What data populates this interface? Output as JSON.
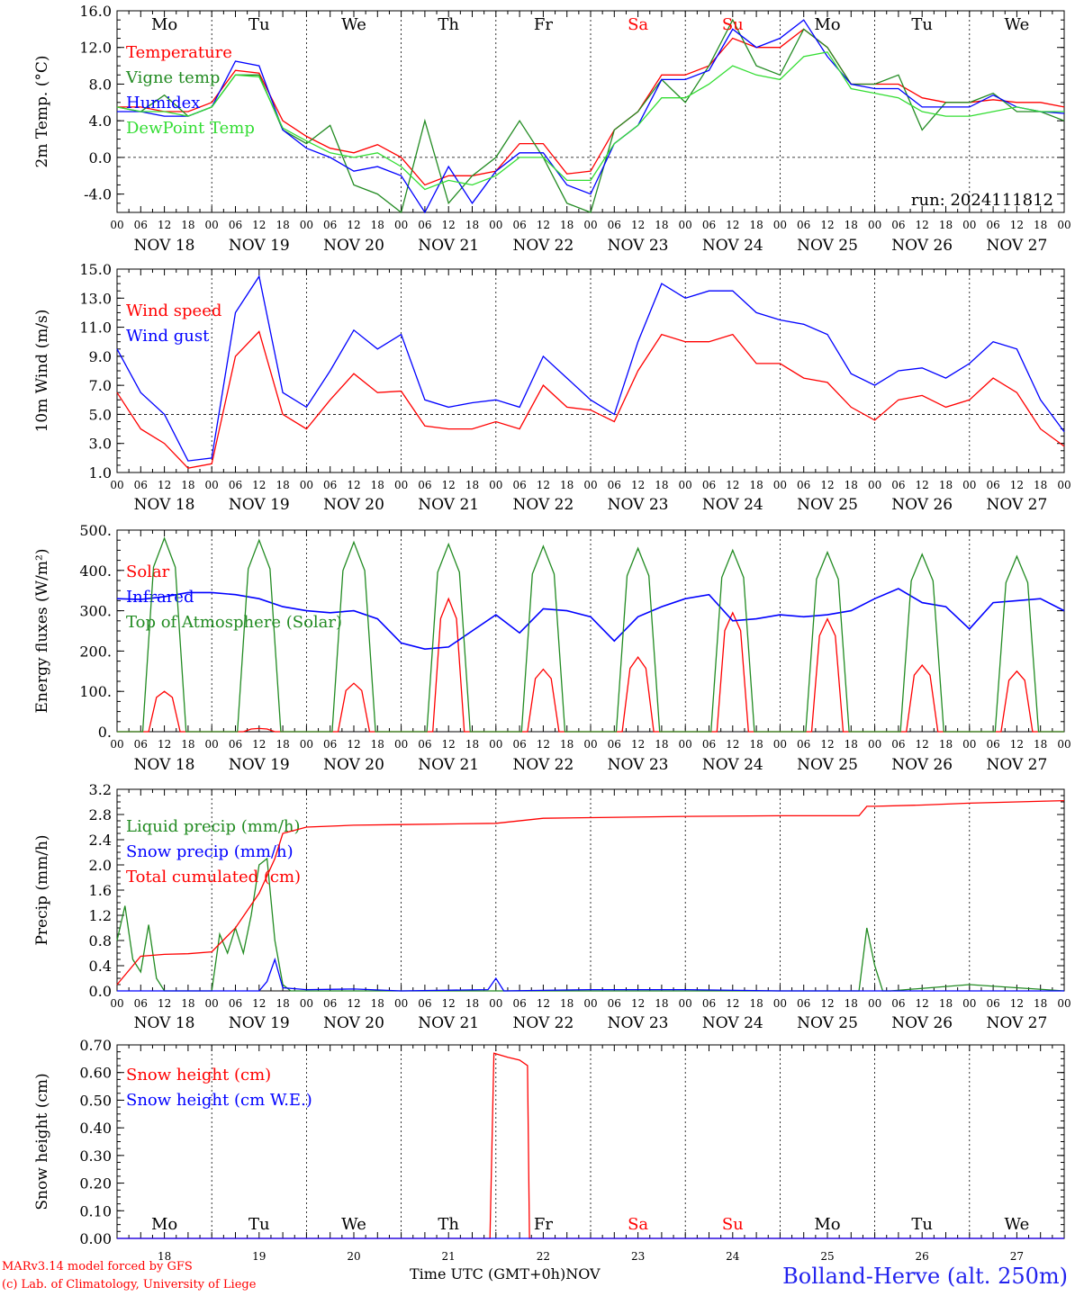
{
  "run_label": "run: 2024111812",
  "x_axis": {
    "title": "Time UTC (GMT+0h)",
    "month": "NOV",
    "hour_ticks": [
      "00",
      "06",
      "12",
      "18"
    ],
    "end_tick": "00",
    "date_labels": [
      "NOV 18",
      "NOV 19",
      "NOV 20",
      "NOV 21",
      "NOV 22",
      "NOV 23",
      "NOV 24",
      "NOV 25",
      "NOV 26",
      "NOV 27"
    ],
    "day_numbers": [
      "18",
      "19",
      "20",
      "21",
      "22",
      "23",
      "24",
      "25",
      "26",
      "27"
    ],
    "weekdays": [
      "Mo",
      "Tu",
      "We",
      "Th",
      "Fr",
      "Sa",
      "Su",
      "Mo",
      "Tu",
      "We"
    ],
    "weekend_color": "#ff0000"
  },
  "footer": {
    "credit_line1": "MARv3.14 model forced by GFS",
    "credit_line2": "(c) Lab. of Climatology, University of Liege",
    "station": "Bolland-Herve (alt. 250m)"
  },
  "chart_data": [
    {
      "type": "line",
      "ylabel": "2m Temp. (°C)",
      "ylim": [
        -6,
        16
      ],
      "yticks": [
        -4,
        0,
        4,
        8,
        12,
        16
      ],
      "ytick_labels": [
        "-4.0",
        "0.0",
        "4.0",
        "8.0",
        "12.0",
        "16.0"
      ],
      "ref_line": 0,
      "x_unit": "hours since 2024-11-18 00 UTC",
      "series": [
        {
          "name": "Temperature",
          "color": "#ff0000",
          "x": [
            0,
            6,
            12,
            18,
            24,
            30,
            36,
            42,
            48,
            54,
            60,
            66,
            72,
            78,
            84,
            90,
            96,
            102,
            108,
            114,
            120,
            126,
            132,
            138,
            144,
            150,
            156,
            162,
            168,
            174,
            180,
            186,
            192,
            198,
            204,
            210,
            216,
            222,
            228,
            234,
            240
          ],
          "values": [
            5.5,
            5.5,
            5,
            5,
            6,
            9.5,
            9.2,
            4,
            2.3,
            1,
            0.5,
            1.4,
            0,
            -3,
            -2,
            -2,
            -1.5,
            1.5,
            1.5,
            -1.8,
            -1.5,
            3,
            5,
            9,
            9,
            10,
            13,
            12,
            12,
            14,
            12,
            8,
            8,
            8,
            6.5,
            6,
            6,
            6.3,
            6,
            6,
            5.5
          ]
        },
        {
          "name": "Vigne temp",
          "color": "#228b22",
          "x": [
            0,
            6,
            12,
            18,
            24,
            30,
            36,
            42,
            48,
            54,
            60,
            66,
            72,
            78,
            84,
            90,
            96,
            102,
            108,
            114,
            120,
            126,
            132,
            138,
            144,
            150,
            156,
            162,
            168,
            174,
            180,
            186,
            192,
            198,
            204,
            210,
            216,
            222,
            228,
            234,
            240
          ],
          "values": [
            5.5,
            5,
            6.8,
            4.5,
            5.5,
            9,
            9,
            3,
            1.5,
            3.5,
            -3,
            -4,
            -6,
            4,
            -5,
            -2,
            0,
            4,
            0,
            -5,
            -6,
            3,
            5,
            8.5,
            6,
            10,
            15,
            10,
            9,
            14,
            12,
            8,
            8,
            9,
            3,
            6,
            6,
            7,
            5,
            5,
            4
          ]
        },
        {
          "name": "Humidex",
          "color": "#0000ff",
          "x": [
            0,
            6,
            12,
            18,
            24,
            30,
            36,
            42,
            48,
            54,
            60,
            66,
            72,
            78,
            84,
            90,
            96,
            102,
            108,
            114,
            120,
            126,
            132,
            138,
            144,
            150,
            156,
            162,
            168,
            174,
            180,
            186,
            192,
            198,
            204,
            210,
            216,
            222,
            228,
            234,
            240
          ],
          "values": [
            5,
            5,
            4.5,
            4.5,
            5.5,
            10.5,
            10,
            3,
            1,
            0,
            -1.5,
            -1,
            -2,
            -6,
            -1,
            -5,
            -1.5,
            0.5,
            0.5,
            -3,
            -4,
            1.5,
            3.5,
            8.5,
            8.5,
            9.5,
            14,
            12,
            13,
            15,
            11,
            8,
            7.5,
            7.5,
            5.5,
            5.5,
            5.5,
            6.8,
            5.5,
            5,
            4.8
          ]
        },
        {
          "name": "DewPoint Temp",
          "color": "#33dd33",
          "x": [
            0,
            6,
            12,
            18,
            24,
            30,
            36,
            42,
            48,
            54,
            60,
            66,
            72,
            78,
            84,
            90,
            96,
            102,
            108,
            114,
            120,
            126,
            132,
            138,
            144,
            150,
            156,
            162,
            168,
            174,
            180,
            186,
            192,
            198,
            204,
            210,
            216,
            222,
            228,
            234,
            240
          ],
          "values": [
            5.5,
            5,
            5,
            4.5,
            5.5,
            9,
            8.8,
            3.2,
            1.8,
            0.5,
            0,
            0.5,
            -1,
            -3.5,
            -2.5,
            -3,
            -2,
            0,
            0,
            -2.5,
            -2.5,
            1.5,
            3.5,
            6.5,
            6.5,
            8,
            10,
            9,
            8.5,
            11,
            11.5,
            7.5,
            7,
            6.5,
            5,
            4.5,
            4.5,
            5,
            5.5,
            5,
            5
          ]
        }
      ],
      "legend_placement": "top-left"
    },
    {
      "type": "line",
      "ylabel": "10m Wind (m/s)",
      "ylim": [
        1,
        15
      ],
      "yticks": [
        1,
        3,
        5,
        7,
        9,
        11,
        13,
        15
      ],
      "ytick_labels": [
        "1.0",
        "3.0",
        "5.0",
        "7.0",
        "9.0",
        "11.0",
        "13.0",
        "15.0"
      ],
      "ref_line": 5,
      "series": [
        {
          "name": "Wind speed",
          "color": "#ff0000",
          "x": [
            0,
            6,
            12,
            18,
            24,
            30,
            36,
            42,
            48,
            54,
            60,
            66,
            72,
            78,
            84,
            90,
            96,
            102,
            108,
            114,
            120,
            126,
            132,
            138,
            144,
            150,
            156,
            162,
            168,
            174,
            180,
            186,
            192,
            198,
            204,
            210,
            216,
            222,
            228,
            234,
            240
          ],
          "values": [
            6.5,
            4,
            3,
            1.3,
            1.6,
            9,
            10.7,
            5,
            4,
            6,
            7.8,
            6.5,
            6.6,
            4.2,
            4,
            4,
            4.5,
            4,
            7,
            5.5,
            5.3,
            4.5,
            8,
            10.5,
            10,
            10,
            10.5,
            8.5,
            8.5,
            7.5,
            7.2,
            5.5,
            4.6,
            6,
            6.3,
            5.5,
            6,
            7.5,
            6.5,
            4,
            2.8
          ]
        },
        {
          "name": "Wind gust",
          "color": "#0000ff",
          "x": [
            0,
            6,
            12,
            18,
            24,
            30,
            36,
            42,
            48,
            54,
            60,
            66,
            72,
            78,
            84,
            90,
            96,
            102,
            108,
            114,
            120,
            126,
            132,
            138,
            144,
            150,
            156,
            162,
            168,
            174,
            180,
            186,
            192,
            198,
            204,
            210,
            216,
            222,
            228,
            234,
            240
          ],
          "values": [
            9.5,
            6.5,
            5,
            1.8,
            2,
            12,
            14.5,
            6.5,
            5.5,
            8,
            10.8,
            9.5,
            10.5,
            6,
            5.5,
            5.8,
            6,
            5.5,
            9,
            7.5,
            6,
            5,
            10,
            14,
            13,
            13.5,
            13.5,
            12,
            11.5,
            11.2,
            10.5,
            7.8,
            7,
            8,
            8.2,
            7.5,
            8.5,
            10,
            9.5,
            6,
            3.8
          ]
        }
      ],
      "legend_placement": "top-left"
    },
    {
      "type": "line",
      "ylabel": "Energy fluxes (W/m²)",
      "ylim": [
        0,
        500
      ],
      "yticks": [
        0,
        100,
        200,
        300,
        400,
        500
      ],
      "ytick_labels": [
        "0.",
        "100.",
        "200.",
        "300.",
        "400.",
        "500."
      ],
      "series": [
        {
          "name": "Solar",
          "color": "#ff0000",
          "peaks": [
            100,
            8,
            120,
            330,
            155,
            185,
            295,
            280,
            165,
            150
          ]
        },
        {
          "name": "Infrared",
          "color": "#0000ff",
          "x": [
            0,
            6,
            12,
            18,
            24,
            30,
            36,
            42,
            48,
            54,
            60,
            66,
            72,
            78,
            84,
            90,
            96,
            102,
            108,
            114,
            120,
            126,
            132,
            138,
            144,
            150,
            156,
            162,
            168,
            174,
            180,
            186,
            192,
            198,
            204,
            210,
            216,
            222,
            228,
            234,
            240
          ],
          "values": [
            330,
            328,
            335,
            345,
            345,
            340,
            330,
            310,
            300,
            295,
            300,
            280,
            220,
            205,
            210,
            250,
            290,
            245,
            305,
            300,
            285,
            225,
            285,
            310,
            330,
            340,
            275,
            280,
            290,
            285,
            290,
            300,
            330,
            355,
            320,
            310,
            255,
            320,
            325,
            330,
            300
          ]
        },
        {
          "name": "Top of Atmosphere (Solar)",
          "color": "#228b22",
          "peaks": [
            480,
            475,
            470,
            465,
            460,
            455,
            450,
            445,
            440,
            435
          ]
        }
      ],
      "legend_placement": "top-left"
    },
    {
      "type": "line",
      "ylabel": "Precip (mm/h)",
      "ylim": [
        0,
        3.2
      ],
      "yticks": [
        0,
        0.4,
        0.8,
        1.2,
        1.6,
        2.0,
        2.4,
        2.8,
        3.2
      ],
      "ytick_labels": [
        "0.0",
        "0.4",
        "0.8",
        "1.2",
        "1.6",
        "2.0",
        "2.4",
        "2.8",
        "3.2"
      ],
      "series": [
        {
          "name": "Liquid precip (mm/h)",
          "color": "#228b22",
          "x": [
            0,
            2,
            4,
            6,
            8,
            10,
            12,
            18,
            24,
            26,
            28,
            30,
            32,
            34,
            36,
            38,
            40,
            42,
            44,
            48,
            60,
            72,
            96,
            120,
            144,
            168,
            188,
            190,
            192,
            194,
            196,
            216,
            240
          ],
          "values": [
            0.8,
            1.35,
            0.5,
            0.3,
            1.05,
            0.2,
            0,
            0,
            0,
            0.9,
            0.6,
            1.0,
            0.6,
            1.2,
            2.0,
            2.1,
            0.8,
            0.1,
            0,
            0,
            0,
            0,
            0,
            0,
            0,
            0,
            0,
            1.0,
            0.4,
            0,
            0,
            0.1,
            0
          ]
        },
        {
          "name": "Snow precip (mm/h)",
          "color": "#0000ff",
          "x": [
            0,
            36,
            38,
            40,
            42,
            48,
            60,
            72,
            94,
            96,
            98,
            120,
            144,
            168,
            192,
            216,
            240
          ],
          "values": [
            0,
            0,
            0.15,
            0.5,
            0.05,
            0.02,
            0.03,
            0,
            0.02,
            0.2,
            0,
            0.02,
            0.02,
            0,
            0,
            0,
            0
          ]
        },
        {
          "name": "Total cumulated (cm)",
          "color": "#ff0000",
          "x": [
            0,
            6,
            12,
            18,
            24,
            30,
            36,
            40,
            42,
            48,
            60,
            72,
            96,
            108,
            120,
            144,
            168,
            180,
            188,
            190,
            192,
            204,
            216,
            240
          ],
          "values": [
            0.1,
            0.55,
            0.58,
            0.59,
            0.62,
            1.0,
            1.55,
            2.1,
            2.5,
            2.6,
            2.63,
            2.64,
            2.66,
            2.74,
            2.75,
            2.77,
            2.78,
            2.78,
            2.78,
            2.93,
            2.93,
            2.95,
            2.98,
            3.02
          ]
        }
      ],
      "legend_placement": "top-left"
    },
    {
      "type": "line",
      "ylabel": "Snow height (cm)",
      "ylim": [
        0,
        0.7
      ],
      "yticks": [
        0,
        0.1,
        0.2,
        0.3,
        0.4,
        0.5,
        0.6,
        0.7
      ],
      "ytick_labels": [
        "0.00",
        "0.10",
        "0.20",
        "0.30",
        "0.40",
        "0.50",
        "0.60",
        "0.70"
      ],
      "series": [
        {
          "name": "Snow height (cm)",
          "color": "#ff0000",
          "x": [
            0,
            94.5,
            95.5,
            99,
            102,
            104,
            104.5,
            240
          ],
          "values": [
            0,
            0,
            0.67,
            0.655,
            0.645,
            0.625,
            0,
            0
          ]
        },
        {
          "name": "Snow height (cm W.E.)",
          "color": "#0000ff",
          "x": [
            0,
            240
          ],
          "values": [
            0,
            0
          ]
        }
      ],
      "legend_placement": "top-left"
    }
  ]
}
